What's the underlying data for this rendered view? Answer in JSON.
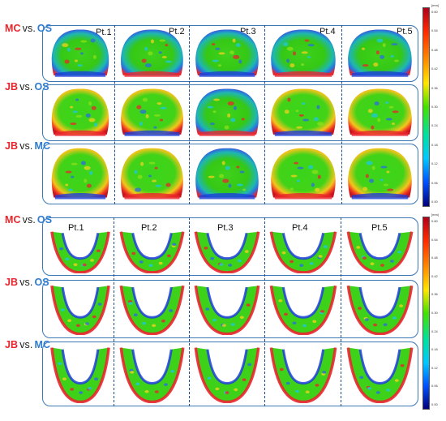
{
  "patients": [
    "Pt.1",
    "Pt.2",
    "Pt.3",
    "Pt.4",
    "Pt.5"
  ],
  "sections": [
    {
      "name": "maxillary",
      "rows": [
        {
          "a": "MC",
          "vs": "vs.",
          "b": "OS"
        },
        {
          "a": "JB",
          "vs": "vs.",
          "b": "OS"
        },
        {
          "a": "JB",
          "vs": "vs.",
          "b": "MC"
        }
      ],
      "colorbar": {
        "unit": "[mm]",
        "ticks": [
          "0.60",
          "0.54",
          "0.48",
          "0.42",
          "0.36",
          "0.30",
          "0.24",
          "0.18",
          "0.12",
          "0.06",
          "0.00"
        ]
      }
    },
    {
      "name": "mandibular",
      "rows": [
        {
          "a": "MC",
          "vs": "vs.",
          "b": "OS"
        },
        {
          "a": "JB",
          "vs": "vs.",
          "b": "OS"
        },
        {
          "a": "JB",
          "vs": "vs.",
          "b": "MC"
        }
      ],
      "colorbar": {
        "unit": "[mm]",
        "ticks": [
          "0.60",
          "0.54",
          "0.48",
          "0.42",
          "0.36",
          "0.30",
          "0.24",
          "0.18",
          "0.12",
          "0.06",
          "0.00"
        ]
      }
    }
  ],
  "colors": {
    "label_a": "#e8262d",
    "label_b": "#2e7bd0",
    "frame": "#3c78b4",
    "divider": "#1f4e8c",
    "deviation_high": "#e8262d",
    "deviation_mid": "#44d61a",
    "deviation_low": "#1c3fd8"
  }
}
